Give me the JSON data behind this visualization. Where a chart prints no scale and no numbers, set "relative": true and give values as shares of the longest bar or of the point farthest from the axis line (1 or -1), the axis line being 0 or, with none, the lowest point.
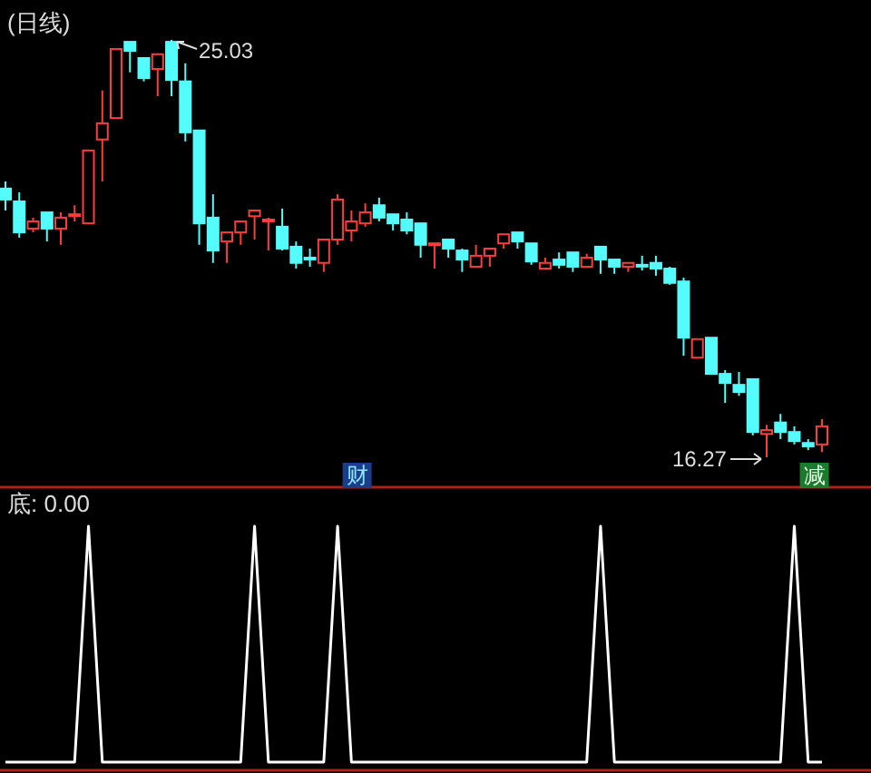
{
  "chart_data": [
    {
      "type": "candlestick",
      "title": "(日线)",
      "categories": [
        null,
        null,
        null,
        null,
        null,
        null,
        null,
        null,
        null,
        null,
        null,
        null,
        null,
        null,
        null,
        null,
        null,
        null,
        null,
        null,
        null,
        null,
        null,
        null,
        null,
        null,
        null,
        null,
        null,
        null,
        null,
        null,
        null,
        null,
        null,
        null,
        null,
        null,
        null,
        null,
        null,
        null,
        null,
        null,
        null,
        null,
        null,
        null,
        null,
        null,
        null,
        null,
        null,
        null,
        null,
        null,
        null,
        null,
        null,
        null
      ],
      "ohlc": [
        [
          21.91,
          22.06,
          21.45,
          21.68
        ],
        [
          21.64,
          21.83,
          20.88,
          20.99
        ],
        [
          21.07,
          21.3,
          20.99,
          21.22
        ],
        [
          21.41,
          21.41,
          20.8,
          21.07
        ],
        [
          21.07,
          21.41,
          20.73,
          21.3
        ],
        [
          21.35,
          21.56,
          21.22,
          21.37
        ],
        [
          21.18,
          22.71,
          21.18,
          22.71
        ],
        [
          22.94,
          23.97,
          22.06,
          23.28
        ],
        [
          23.39,
          24.84,
          23.39,
          24.84
        ],
        [
          24.99,
          24.99,
          24.35,
          24.8
        ],
        [
          24.65,
          24.65,
          24.16,
          24.23
        ],
        [
          24.42,
          24.73,
          23.85,
          24.73
        ],
        [
          24.99,
          25.03,
          23.85,
          24.19
        ],
        [
          24.16,
          24.54,
          22.9,
          23.09
        ],
        [
          23.13,
          23.13,
          20.73,
          21.18
        ],
        [
          21.3,
          21.79,
          20.35,
          20.61
        ],
        [
          20.8,
          20.99,
          20.35,
          20.99
        ],
        [
          20.99,
          21.22,
          20.73,
          21.22
        ],
        [
          21.33,
          21.45,
          20.84,
          21.45
        ],
        [
          21.24,
          21.3,
          20.61,
          21.26
        ],
        [
          21.11,
          21.49,
          20.61,
          20.65
        ],
        [
          20.69,
          20.8,
          20.23,
          20.35
        ],
        [
          20.46,
          20.65,
          20.27,
          20.44
        ],
        [
          20.35,
          20.84,
          20.16,
          20.84
        ],
        [
          20.84,
          21.79,
          20.73,
          21.68
        ],
        [
          21.03,
          21.45,
          20.8,
          21.22
        ],
        [
          21.18,
          21.6,
          21.11,
          21.41
        ],
        [
          21.56,
          21.72,
          21.22,
          21.3
        ],
        [
          21.37,
          21.37,
          21.03,
          21.18
        ],
        [
          21.26,
          21.41,
          20.95,
          21.03
        ],
        [
          21.18,
          21.18,
          20.46,
          20.73
        ],
        [
          20.74,
          20.76,
          20.23,
          20.76
        ],
        [
          20.84,
          20.84,
          20.46,
          20.65
        ],
        [
          20.61,
          20.65,
          20.16,
          20.42
        ],
        [
          20.27,
          20.73,
          20.27,
          20.5
        ],
        [
          20.5,
          20.65,
          20.27,
          20.65
        ],
        [
          20.76,
          20.95,
          20.65,
          20.95
        ],
        [
          20.99,
          20.99,
          20.65,
          20.8
        ],
        [
          20.76,
          20.76,
          20.31,
          20.38
        ],
        [
          20.23,
          20.46,
          20.23,
          20.35
        ],
        [
          20.42,
          20.57,
          20.23,
          20.31
        ],
        [
          20.57,
          20.57,
          20.16,
          20.27
        ],
        [
          20.27,
          20.54,
          20.27,
          20.46
        ],
        [
          20.69,
          20.69,
          20.12,
          20.42
        ],
        [
          20.42,
          20.42,
          20.12,
          20.27
        ],
        [
          20.27,
          20.35,
          20.16,
          20.35
        ],
        [
          20.31,
          20.5,
          20.19,
          20.29
        ],
        [
          20.35,
          20.5,
          20.08,
          20.23
        ],
        [
          20.23,
          20.27,
          19.89,
          19.93
        ],
        [
          19.96,
          20.04,
          18.4,
          18.78
        ],
        [
          18.36,
          18.75,
          18.36,
          18.75
        ],
        [
          18.78,
          18.78,
          18.02,
          18.02
        ],
        [
          18.02,
          18.1,
          17.41,
          17.83
        ],
        [
          17.79,
          18.06,
          17.56,
          17.64
        ],
        [
          17.91,
          17.91,
          16.73,
          16.8
        ],
        [
          16.76,
          16.95,
          16.27,
          16.84
        ],
        [
          17.0,
          17.18,
          16.65,
          16.8
        ],
        [
          16.8,
          16.92,
          16.54,
          16.61
        ],
        [
          16.57,
          16.65,
          16.42,
          16.5
        ],
        [
          16.54,
          17.07,
          16.38,
          16.92
        ]
      ],
      "annotations": [
        "25.03",
        "16.27",
        "财",
        "减"
      ]
    },
    {
      "type": "line",
      "title": "底: 0.00",
      "relative": true,
      "categories": [
        null,
        null,
        null,
        null,
        null,
        null,
        null,
        null,
        null,
        null,
        null,
        null,
        null,
        null,
        null,
        null,
        null,
        null,
        null,
        null,
        null,
        null,
        null,
        null,
        null,
        null,
        null,
        null,
        null,
        null,
        null,
        null,
        null,
        null,
        null,
        null,
        null,
        null,
        null,
        null,
        null,
        null,
        null,
        null,
        null,
        null,
        null,
        null,
        null,
        null,
        null,
        null,
        null,
        null,
        null,
        null,
        null,
        null,
        null,
        null
      ],
      "series": [
        {
          "color": "#ffffff",
          "values": [
            0,
            0,
            0,
            0,
            0,
            0,
            1,
            0,
            0,
            0,
            0,
            0,
            0,
            0,
            0,
            0,
            0,
            0,
            1,
            0,
            0,
            0,
            0,
            0,
            1,
            0,
            0,
            0,
            0,
            0,
            0,
            0,
            0,
            0,
            0,
            0,
            0,
            0,
            0,
            0,
            0,
            0,
            0,
            1,
            0,
            0,
            0,
            0,
            0,
            0,
            0,
            0,
            0,
            0,
            0,
            0,
            0,
            1,
            0,
            0
          ]
        }
      ]
    }
  ]
}
